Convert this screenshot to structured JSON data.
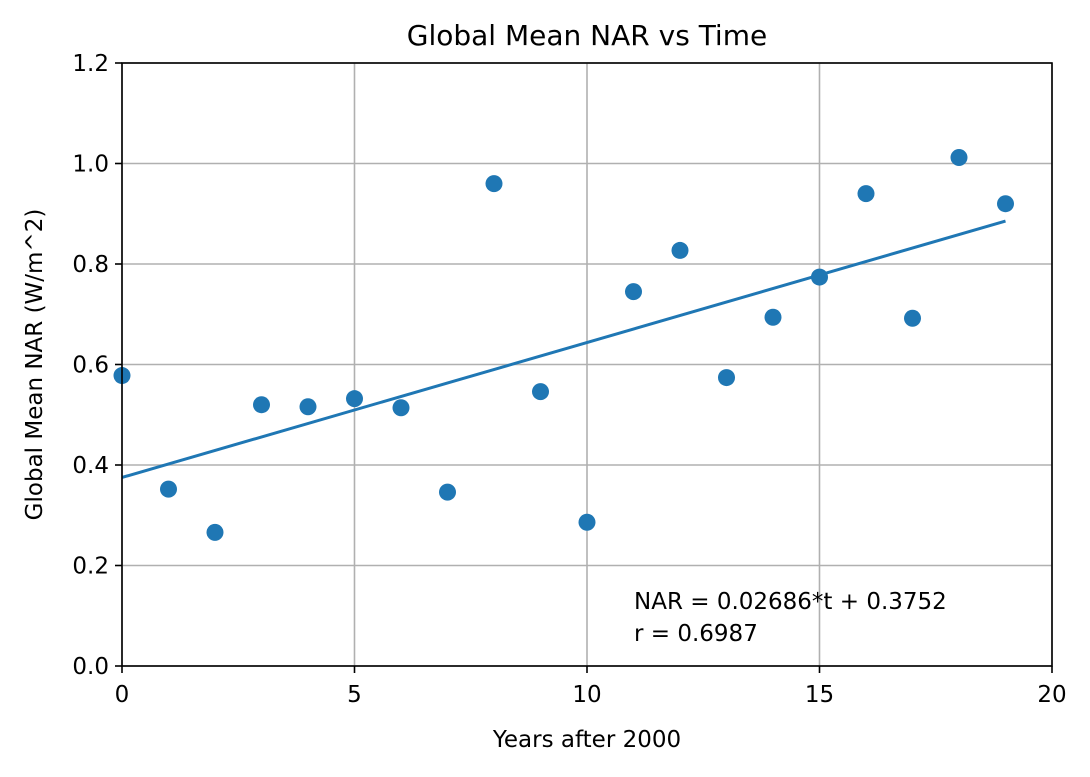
{
  "chart_data": {
    "type": "scatter",
    "title": "Global Mean NAR vs Time",
    "xlabel": "Years after 2000",
    "ylabel": "Global Mean NAR (W/m^2)",
    "xlim": [
      0,
      20
    ],
    "ylim": [
      0.0,
      1.2
    ],
    "xticks": [
      0,
      5,
      10,
      15,
      20
    ],
    "xtick_labels": [
      "0",
      "5",
      "10",
      "15",
      "20"
    ],
    "yticks": [
      0.0,
      0.2,
      0.4,
      0.6,
      0.8,
      1.0,
      1.2
    ],
    "ytick_labels": [
      "0.0",
      "0.2",
      "0.4",
      "0.6",
      "0.8",
      "1.0",
      "1.2"
    ],
    "grid": true,
    "series": [
      {
        "type": "scatter",
        "color": "#1f77b4",
        "x": [
          0,
          1,
          2,
          3,
          4,
          5,
          6,
          7,
          8,
          9,
          10,
          11,
          12,
          13,
          14,
          15,
          16,
          17,
          18,
          19
        ],
        "y": [
          0.578,
          0.352,
          0.266,
          0.52,
          0.516,
          0.532,
          0.514,
          0.346,
          0.96,
          0.546,
          0.286,
          0.745,
          0.827,
          0.574,
          0.694,
          0.774,
          0.94,
          0.692,
          1.012,
          0.92
        ]
      },
      {
        "type": "line",
        "color": "#1f77b4",
        "x": [
          0,
          19
        ],
        "y": [
          0.3752,
          0.8855
        ]
      }
    ],
    "annotations": [
      "NAR = 0.02686*t + 0.3752",
      "r = 0.6987"
    ]
  }
}
